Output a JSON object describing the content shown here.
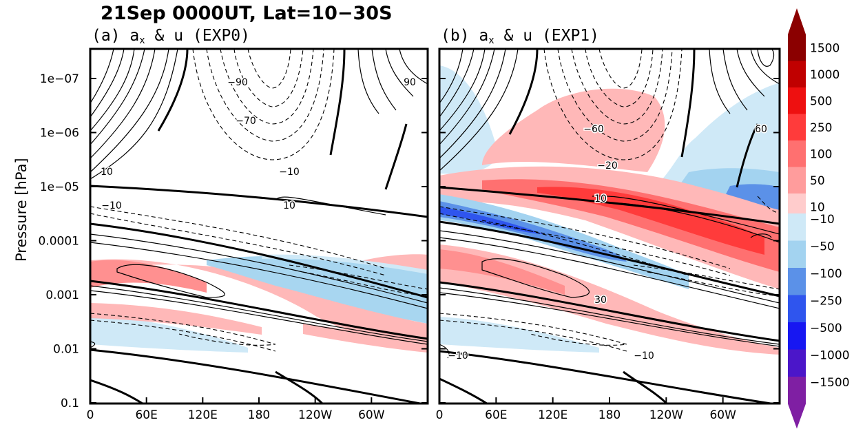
{
  "chart_data": {
    "type": "contour",
    "title": "21Sep 0000UT, Lat=10−30S",
    "ylabel": "Pressure [hPa]",
    "y_scale": "log",
    "y_ticks": [
      "1e−07",
      "1e−06",
      "1e−05",
      "0.0001",
      "0.001",
      "0.01",
      "0.1"
    ],
    "x_ticks": [
      "0",
      "60E",
      "120E",
      "180",
      "120W",
      "60W"
    ],
    "panels": [
      {
        "label": "(a) a",
        "label_sub": "x",
        "label_rest": " & u (EXP0)",
        "contour_labels": [
          "−90",
          "90",
          "−70",
          "10",
          "−10",
          "−10",
          "10"
        ]
      },
      {
        "label": "(b) a",
        "label_sub": "x",
        "label_rest": " & u (EXP1)",
        "contour_labels": [
          "−60",
          "60",
          "−20",
          "10",
          "30",
          "−10",
          "−10"
        ]
      }
    ],
    "colorbar": {
      "positive_levels": [
        "1500",
        "1000",
        "500",
        "250",
        "100",
        "50",
        "10"
      ],
      "positive_colors": [
        "#8b0000",
        "#c00000",
        "#ee1010",
        "#ff3b3b",
        "#ff7070",
        "#ff9c9c",
        "#ffcccc"
      ],
      "negative_levels": [
        "−10",
        "−50",
        "−100",
        "−250",
        "−500",
        "−1000",
        "−1500"
      ],
      "negative_colors": [
        "#cfe9f7",
        "#a3d3f0",
        "#5b91e8",
        "#2f55ee",
        "#1717f2",
        "#4b16c9",
        "#7f1fa3"
      ]
    }
  }
}
